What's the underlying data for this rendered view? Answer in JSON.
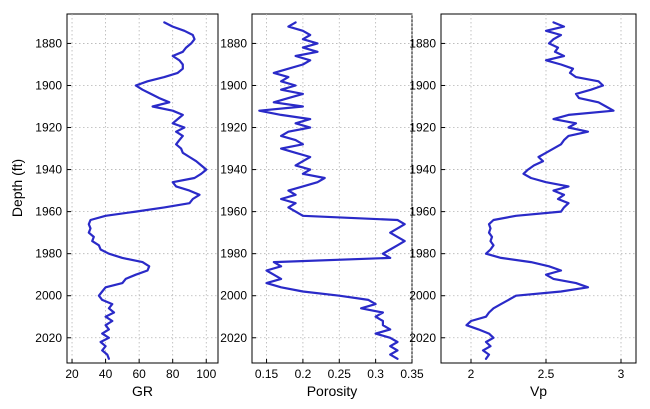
{
  "chart_data": {
    "type": "line",
    "ylabel": "Depth (ft)",
    "ylim": [
      1866,
      2032
    ],
    "y_reversed": true,
    "yticks": [
      1880,
      1900,
      1920,
      1940,
      1960,
      1980,
      2000,
      2020
    ],
    "grid": true,
    "line_color": "#2a2ac8",
    "panels": [
      {
        "xlabel": "GR",
        "xlim": [
          17,
          107
        ],
        "xticks": [
          20,
          40,
          60,
          80,
          100
        ],
        "xticklabels": [
          "20",
          "40",
          "60",
          "80",
          "100"
        ],
        "points": [
          [
            1870,
            75
          ],
          [
            1872,
            80
          ],
          [
            1874,
            87
          ],
          [
            1876,
            92
          ],
          [
            1878,
            93
          ],
          [
            1880,
            91
          ],
          [
            1882,
            88
          ],
          [
            1884,
            86
          ],
          [
            1886,
            80
          ],
          [
            1888,
            84
          ],
          [
            1890,
            86
          ],
          [
            1892,
            86
          ],
          [
            1894,
            83
          ],
          [
            1896,
            75
          ],
          [
            1898,
            65
          ],
          [
            1900,
            58
          ],
          [
            1902,
            62
          ],
          [
            1904,
            67
          ],
          [
            1906,
            72
          ],
          [
            1908,
            78
          ],
          [
            1910,
            68
          ],
          [
            1912,
            80
          ],
          [
            1914,
            86
          ],
          [
            1916,
            83
          ],
          [
            1918,
            80
          ],
          [
            1920,
            87
          ],
          [
            1922,
            82
          ],
          [
            1924,
            86
          ],
          [
            1926,
            84
          ],
          [
            1928,
            82
          ],
          [
            1930,
            85
          ],
          [
            1932,
            86
          ],
          [
            1934,
            90
          ],
          [
            1936,
            94
          ],
          [
            1938,
            97
          ],
          [
            1940,
            100
          ],
          [
            1942,
            97
          ],
          [
            1944,
            93
          ],
          [
            1946,
            80
          ],
          [
            1948,
            82
          ],
          [
            1950,
            90
          ],
          [
            1952,
            96
          ],
          [
            1954,
            92
          ],
          [
            1956,
            90
          ],
          [
            1958,
            75
          ],
          [
            1960,
            58
          ],
          [
            1962,
            40
          ],
          [
            1964,
            31
          ],
          [
            1966,
            30
          ],
          [
            1968,
            31
          ],
          [
            1970,
            30
          ],
          [
            1972,
            33
          ],
          [
            1974,
            32
          ],
          [
            1976,
            36
          ],
          [
            1978,
            37
          ],
          [
            1980,
            42
          ],
          [
            1982,
            50
          ],
          [
            1984,
            62
          ],
          [
            1986,
            66
          ],
          [
            1988,
            65
          ],
          [
            1990,
            58
          ],
          [
            1992,
            52
          ],
          [
            1994,
            50
          ],
          [
            1996,
            40
          ],
          [
            1998,
            38
          ],
          [
            2000,
            36
          ],
          [
            2002,
            38
          ],
          [
            2004,
            44
          ],
          [
            2006,
            42
          ],
          [
            2008,
            45
          ],
          [
            2010,
            40
          ],
          [
            2012,
            44
          ],
          [
            2014,
            40
          ],
          [
            2016,
            42
          ],
          [
            2018,
            38
          ],
          [
            2020,
            42
          ],
          [
            2022,
            37
          ],
          [
            2024,
            40
          ],
          [
            2026,
            38
          ],
          [
            2028,
            41
          ],
          [
            2030,
            42
          ]
        ]
      },
      {
        "xlabel": "Porosity",
        "xlim": [
          0.13,
          0.35
        ],
        "xticks": [
          0.15,
          0.2,
          0.25,
          0.3,
          0.35
        ],
        "xticklabels": [
          "0.15",
          "0.2",
          "0.25",
          "0.3",
          "0.35"
        ],
        "points": [
          [
            1870,
            0.19
          ],
          [
            1872,
            0.18
          ],
          [
            1874,
            0.2
          ],
          [
            1876,
            0.21
          ],
          [
            1878,
            0.2
          ],
          [
            1880,
            0.22
          ],
          [
            1882,
            0.2
          ],
          [
            1884,
            0.22
          ],
          [
            1886,
            0.19
          ],
          [
            1888,
            0.21
          ],
          [
            1890,
            0.2
          ],
          [
            1892,
            0.18
          ],
          [
            1894,
            0.16
          ],
          [
            1896,
            0.18
          ],
          [
            1898,
            0.17
          ],
          [
            1900,
            0.19
          ],
          [
            1902,
            0.17
          ],
          [
            1904,
            0.2
          ],
          [
            1906,
            0.18
          ],
          [
            1908,
            0.16
          ],
          [
            1910,
            0.2
          ],
          [
            1912,
            0.14
          ],
          [
            1914,
            0.17
          ],
          [
            1916,
            0.21
          ],
          [
            1918,
            0.19
          ],
          [
            1920,
            0.21
          ],
          [
            1922,
            0.18
          ],
          [
            1924,
            0.17
          ],
          [
            1926,
            0.19
          ],
          [
            1928,
            0.2
          ],
          [
            1930,
            0.17
          ],
          [
            1932,
            0.19
          ],
          [
            1934,
            0.21
          ],
          [
            1936,
            0.2
          ],
          [
            1938,
            0.19
          ],
          [
            1940,
            0.21
          ],
          [
            1942,
            0.2
          ],
          [
            1944,
            0.23
          ],
          [
            1946,
            0.22
          ],
          [
            1948,
            0.2
          ],
          [
            1950,
            0.18
          ],
          [
            1952,
            0.19
          ],
          [
            1954,
            0.17
          ],
          [
            1956,
            0.19
          ],
          [
            1958,
            0.18
          ],
          [
            1960,
            0.19
          ],
          [
            1962,
            0.2
          ],
          [
            1964,
            0.33
          ],
          [
            1966,
            0.34
          ],
          [
            1968,
            0.33
          ],
          [
            1970,
            0.32
          ],
          [
            1972,
            0.33
          ],
          [
            1974,
            0.34
          ],
          [
            1976,
            0.33
          ],
          [
            1978,
            0.32
          ],
          [
            1980,
            0.31
          ],
          [
            1982,
            0.32
          ],
          [
            1984,
            0.16
          ],
          [
            1986,
            0.17
          ],
          [
            1988,
            0.15
          ],
          [
            1990,
            0.16
          ],
          [
            1992,
            0.17
          ],
          [
            1994,
            0.15
          ],
          [
            1996,
            0.17
          ],
          [
            1998,
            0.2
          ],
          [
            2000,
            0.25
          ],
          [
            2002,
            0.29
          ],
          [
            2004,
            0.3
          ],
          [
            2006,
            0.28
          ],
          [
            2008,
            0.31
          ],
          [
            2010,
            0.3
          ],
          [
            2012,
            0.31
          ],
          [
            2014,
            0.31
          ],
          [
            2016,
            0.32
          ],
          [
            2018,
            0.3
          ],
          [
            2020,
            0.32
          ],
          [
            2022,
            0.33
          ],
          [
            2024,
            0.32
          ],
          [
            2026,
            0.33
          ],
          [
            2028,
            0.32
          ],
          [
            2030,
            0.33
          ]
        ]
      },
      {
        "xlabel": "Vp",
        "xlim": [
          1.8,
          3.1
        ],
        "xticks": [
          2,
          2.5,
          3
        ],
        "xticklabels": [
          "2",
          "2.5",
          "3"
        ],
        "points": [
          [
            1870,
            2.55
          ],
          [
            1872,
            2.62
          ],
          [
            1874,
            2.5
          ],
          [
            1876,
            2.6
          ],
          [
            1878,
            2.55
          ],
          [
            1880,
            2.52
          ],
          [
            1882,
            2.58
          ],
          [
            1884,
            2.56
          ],
          [
            1886,
            2.62
          ],
          [
            1888,
            2.5
          ],
          [
            1890,
            2.6
          ],
          [
            1892,
            2.68
          ],
          [
            1894,
            2.66
          ],
          [
            1896,
            2.7
          ],
          [
            1898,
            2.85
          ],
          [
            1900,
            2.88
          ],
          [
            1902,
            2.8
          ],
          [
            1904,
            2.7
          ],
          [
            1906,
            2.72
          ],
          [
            1908,
            2.85
          ],
          [
            1910,
            2.9
          ],
          [
            1912,
            2.95
          ],
          [
            1914,
            2.65
          ],
          [
            1916,
            2.55
          ],
          [
            1918,
            2.7
          ],
          [
            1920,
            2.65
          ],
          [
            1922,
            2.78
          ],
          [
            1924,
            2.65
          ],
          [
            1926,
            2.62
          ],
          [
            1928,
            2.6
          ],
          [
            1930,
            2.55
          ],
          [
            1932,
            2.5
          ],
          [
            1934,
            2.45
          ],
          [
            1936,
            2.48
          ],
          [
            1938,
            2.42
          ],
          [
            1940,
            2.38
          ],
          [
            1942,
            2.35
          ],
          [
            1944,
            2.4
          ],
          [
            1946,
            2.5
          ],
          [
            1948,
            2.65
          ],
          [
            1950,
            2.55
          ],
          [
            1952,
            2.62
          ],
          [
            1954,
            2.58
          ],
          [
            1956,
            2.65
          ],
          [
            1958,
            2.62
          ],
          [
            1960,
            2.6
          ],
          [
            1962,
            2.3
          ],
          [
            1964,
            2.15
          ],
          [
            1966,
            2.12
          ],
          [
            1968,
            2.13
          ],
          [
            1970,
            2.12
          ],
          [
            1972,
            2.14
          ],
          [
            1974,
            2.13
          ],
          [
            1976,
            2.15
          ],
          [
            1978,
            2.13
          ],
          [
            1980,
            2.1
          ],
          [
            1982,
            2.2
          ],
          [
            1984,
            2.4
          ],
          [
            1986,
            2.52
          ],
          [
            1988,
            2.6
          ],
          [
            1990,
            2.5
          ],
          [
            1992,
            2.55
          ],
          [
            1994,
            2.7
          ],
          [
            1996,
            2.78
          ],
          [
            1998,
            2.6
          ],
          [
            2000,
            2.3
          ],
          [
            2002,
            2.25
          ],
          [
            2004,
            2.2
          ],
          [
            2006,
            2.15
          ],
          [
            2008,
            2.12
          ],
          [
            2010,
            2.1
          ],
          [
            2012,
            2.0
          ],
          [
            2014,
            1.97
          ],
          [
            2016,
            2.05
          ],
          [
            2018,
            2.12
          ],
          [
            2020,
            2.15
          ],
          [
            2022,
            2.1
          ],
          [
            2024,
            2.13
          ],
          [
            2026,
            2.08
          ],
          [
            2028,
            2.12
          ],
          [
            2030,
            2.1
          ]
        ]
      }
    ]
  }
}
